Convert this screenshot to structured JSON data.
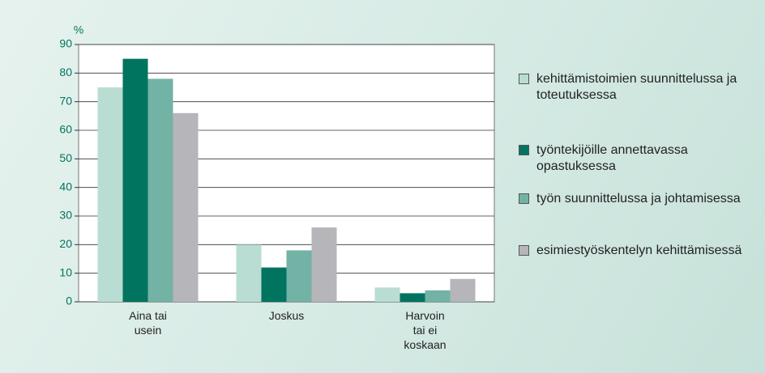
{
  "chart_data": {
    "type": "bar",
    "y_label": "%",
    "categories": [
      "Aina tai\nusein",
      "Joskus",
      "Harvoin\ntai ei\nkoskaan"
    ],
    "series": [
      {
        "name": "kehittämistoimien suunnittelussa ja toteutuksessa",
        "color": "#b9ddd3",
        "values": [
          75,
          20,
          5
        ]
      },
      {
        "name": "työntekijöille annettavassa opastuksessa",
        "color": "#00745f",
        "values": [
          85,
          12,
          3
        ]
      },
      {
        "name": "työn suunnittelussa ja johtamisessa",
        "color": "#72b3a5",
        "values": [
          78,
          18,
          4
        ]
      },
      {
        "name": "esimiestyöskentelyn kehittämisessä",
        "color": "#b5b5ba",
        "values": [
          66,
          26,
          8
        ]
      }
    ],
    "ylim": [
      0,
      90
    ],
    "yticks": [
      0,
      10,
      20,
      30,
      40,
      50,
      60,
      70,
      80,
      90
    ],
    "grid": true,
    "legend": "right"
  }
}
